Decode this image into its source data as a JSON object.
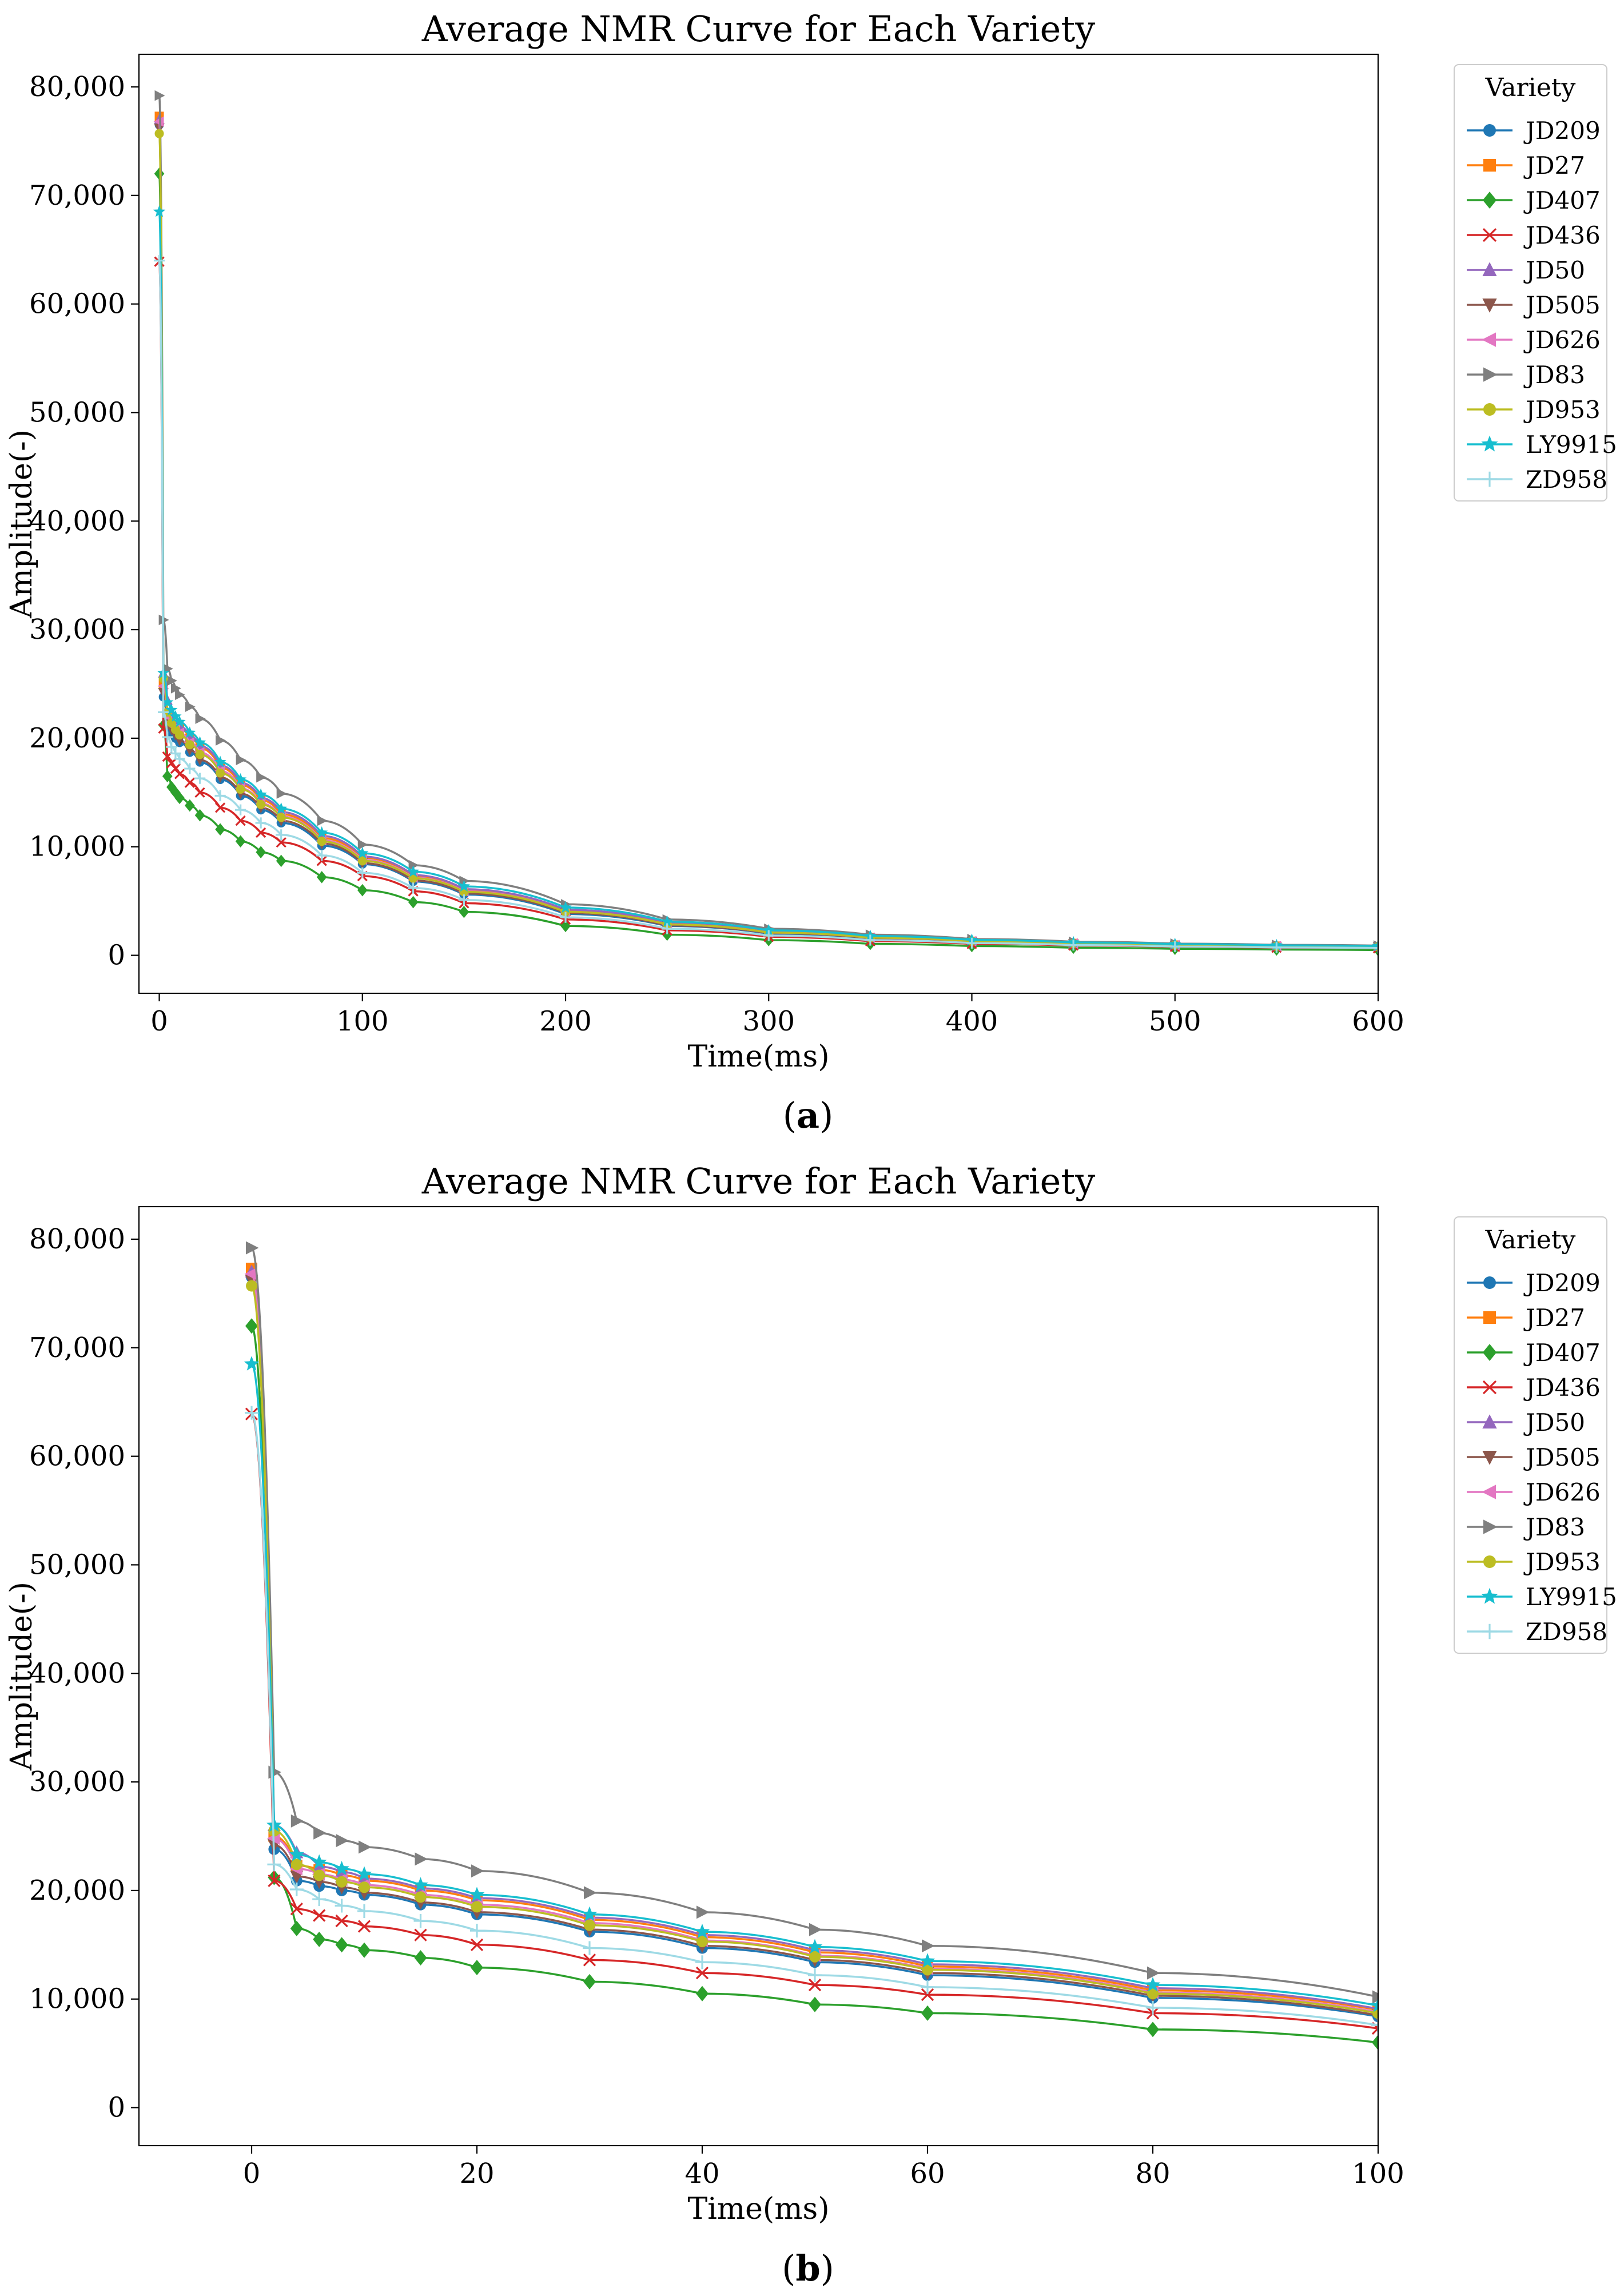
{
  "figure": {
    "panels": [
      {
        "caption_letter": "a"
      },
      {
        "caption_letter": "b"
      }
    ]
  },
  "chart_data": [
    {
      "type": "line",
      "title": "Average NMR Curve for Each Variety",
      "xlabel": "Time(ms)",
      "ylabel": "Amplitude(-)",
      "xlim": [
        -10,
        600
      ],
      "ylim": [
        -3500,
        83000
      ],
      "xticks": [
        0,
        100,
        200,
        300,
        400,
        500,
        600
      ],
      "xtick_labels": [
        "0",
        "100",
        "200",
        "300",
        "400",
        "500",
        "600"
      ],
      "yticks": [
        0,
        10000,
        20000,
        30000,
        40000,
        50000,
        60000,
        70000,
        80000
      ],
      "ytick_labels": [
        "0",
        "10,000",
        "20,000",
        "30,000",
        "40,000",
        "50,000",
        "60,000",
        "70,000",
        "80,000"
      ],
      "grid": false,
      "legend": {
        "title": "Variety",
        "placement": "outside-right-top"
      },
      "x_sample_times": [
        0,
        2,
        4,
        6,
        8,
        10,
        15,
        20,
        30,
        40,
        50,
        60,
        80,
        100,
        125,
        150,
        200,
        250,
        300,
        350,
        400,
        450,
        500,
        550,
        600
      ],
      "series": [
        {
          "name": "JD209",
          "color": "#1f77b4",
          "marker": "circle",
          "values": [
            76500,
            23800,
            20900,
            20400,
            20000,
            19600,
            18700,
            17800,
            16200,
            14700,
            13400,
            12200,
            10100,
            8400,
            6800,
            5600,
            3800,
            2700,
            2000,
            1550,
            1250,
            1050,
            900,
            800,
            750
          ]
        },
        {
          "name": "JD27",
          "color": "#ff7f0e",
          "marker": "square",
          "values": [
            77300,
            25000,
            22300,
            21900,
            21400,
            20900,
            20000,
            19100,
            17300,
            15700,
            14300,
            13000,
            10800,
            9000,
            7300,
            6000,
            4100,
            2900,
            2150,
            1650,
            1300,
            1100,
            950,
            850,
            800
          ]
        },
        {
          "name": "JD407",
          "color": "#2ca02c",
          "marker": "diamond",
          "values": [
            72000,
            21200,
            16500,
            15500,
            15000,
            14500,
            13800,
            12900,
            11600,
            10500,
            9500,
            8700,
            7200,
            6000,
            4900,
            4000,
            2700,
            1900,
            1400,
            1050,
            850,
            700,
            600,
            530,
            480
          ]
        },
        {
          "name": "JD436",
          "color": "#d62728",
          "marker": "x",
          "values": [
            63900,
            20900,
            18300,
            17700,
            17200,
            16700,
            15900,
            15000,
            13600,
            12400,
            11300,
            10400,
            8700,
            7300,
            5900,
            4800,
            3300,
            2300,
            1700,
            1300,
            1050,
            900,
            780,
            700,
            650
          ]
        },
        {
          "name": "JD50",
          "color": "#9467bd",
          "marker": "triangle-up",
          "values": [
            77000,
            26000,
            23500,
            22200,
            21700,
            21100,
            20200,
            19300,
            17500,
            15900,
            14500,
            13200,
            11000,
            9100,
            7400,
            6100,
            4200,
            3000,
            2200,
            1700,
            1350,
            1130,
            970,
            870,
            820
          ]
        },
        {
          "name": "JD505",
          "color": "#8c564b",
          "marker": "triangle-down",
          "values": [
            76200,
            24200,
            21300,
            20800,
            20300,
            19800,
            18900,
            18000,
            16400,
            14900,
            13600,
            12400,
            10300,
            8500,
            6900,
            5700,
            3900,
            2750,
            2050,
            1580,
            1270,
            1070,
            920,
            820,
            770
          ]
        },
        {
          "name": "JD626",
          "color": "#e377c2",
          "marker": "triangle-left",
          "values": [
            76800,
            24800,
            22000,
            21500,
            21000,
            20500,
            19600,
            18700,
            17000,
            15400,
            14000,
            12800,
            10600,
            8800,
            7150,
            5900,
            4000,
            2850,
            2100,
            1620,
            1300,
            1090,
            940,
            840,
            790
          ]
        },
        {
          "name": "JD83",
          "color": "#7f7f7f",
          "marker": "triangle-right",
          "values": [
            79200,
            30900,
            26400,
            25300,
            24600,
            24000,
            22900,
            21800,
            19800,
            18000,
            16400,
            14900,
            12400,
            10200,
            8300,
            6850,
            4700,
            3300,
            2450,
            1900,
            1500,
            1250,
            1080,
            960,
            900
          ]
        },
        {
          "name": "JD953",
          "color": "#bcbd22",
          "marker": "circle",
          "values": [
            75700,
            25500,
            22400,
            21400,
            20800,
            20300,
            19400,
            18500,
            16800,
            15300,
            13900,
            12700,
            10500,
            8700,
            7100,
            5850,
            4000,
            2850,
            2100,
            1620,
            1300,
            1090,
            940,
            840,
            790
          ]
        },
        {
          "name": "LY9915",
          "color": "#17becf",
          "marker": "star",
          "values": [
            68500,
            26000,
            23300,
            22600,
            22000,
            21500,
            20500,
            19600,
            17800,
            16200,
            14800,
            13500,
            11300,
            9400,
            7700,
            6350,
            4400,
            3100,
            2300,
            1780,
            1420,
            1190,
            1030,
            920,
            860
          ]
        },
        {
          "name": "ZD958",
          "color": "#9edae5",
          "marker": "plus",
          "values": [
            64000,
            22400,
            20100,
            19200,
            18600,
            18100,
            17200,
            16300,
            14700,
            13400,
            12200,
            11100,
            9200,
            7600,
            6200,
            5100,
            3500,
            2450,
            1820,
            1400,
            1120,
            940,
            810,
            720,
            680
          ]
        }
      ]
    },
    {
      "type": "line",
      "title": "Average NMR Curve for Each Variety",
      "xlabel": "Time(ms)",
      "ylabel": "Amplitude(-)",
      "xlim": [
        -10,
        100
      ],
      "ylim": [
        -3500,
        83000
      ],
      "xticks": [
        0,
        20,
        40,
        60,
        80,
        100
      ],
      "xtick_labels": [
        "0",
        "20",
        "40",
        "60",
        "80",
        "100"
      ],
      "yticks": [
        0,
        10000,
        20000,
        30000,
        40000,
        50000,
        60000,
        70000,
        80000
      ],
      "ytick_labels": [
        "0",
        "10,000",
        "20,000",
        "30,000",
        "40,000",
        "50,000",
        "60,000",
        "70,000",
        "80,000"
      ],
      "grid": false,
      "legend": {
        "title": "Variety",
        "placement": "outside-right-top"
      },
      "x_sample_times": [
        0,
        2,
        4,
        6,
        8,
        10,
        15,
        20,
        30,
        40,
        50,
        60,
        80,
        100
      ],
      "series": [
        {
          "name": "JD209",
          "color": "#1f77b4",
          "marker": "circle",
          "values": [
            76500,
            23800,
            20900,
            20400,
            20000,
            19600,
            18700,
            17800,
            16200,
            14700,
            13400,
            12200,
            10100,
            8400
          ]
        },
        {
          "name": "JD27",
          "color": "#ff7f0e",
          "marker": "square",
          "values": [
            77300,
            25000,
            22300,
            21900,
            21400,
            20900,
            20000,
            19100,
            17300,
            15700,
            14300,
            13000,
            10800,
            9000
          ]
        },
        {
          "name": "JD407",
          "color": "#2ca02c",
          "marker": "diamond",
          "values": [
            72000,
            21200,
            16500,
            15500,
            15000,
            14500,
            13800,
            12900,
            11600,
            10500,
            9500,
            8700,
            7200,
            6000
          ]
        },
        {
          "name": "JD436",
          "color": "#d62728",
          "marker": "x",
          "values": [
            63900,
            20900,
            18300,
            17700,
            17200,
            16700,
            15900,
            15000,
            13600,
            12400,
            11300,
            10400,
            8700,
            7300
          ]
        },
        {
          "name": "JD50",
          "color": "#9467bd",
          "marker": "triangle-up",
          "values": [
            77000,
            26000,
            23500,
            22200,
            21700,
            21100,
            20200,
            19300,
            17500,
            15900,
            14500,
            13200,
            11000,
            9100
          ]
        },
        {
          "name": "JD505",
          "color": "#8c564b",
          "marker": "triangle-down",
          "values": [
            76200,
            24200,
            21300,
            20800,
            20300,
            19800,
            18900,
            18000,
            16400,
            14900,
            13600,
            12400,
            10300,
            8500
          ]
        },
        {
          "name": "JD626",
          "color": "#e377c2",
          "marker": "triangle-left",
          "values": [
            76800,
            24800,
            22000,
            21500,
            21000,
            20500,
            19600,
            18700,
            17000,
            15400,
            14000,
            12800,
            10600,
            8800
          ]
        },
        {
          "name": "JD83",
          "color": "#7f7f7f",
          "marker": "triangle-right",
          "values": [
            79200,
            30900,
            26400,
            25300,
            24600,
            24000,
            22900,
            21800,
            19800,
            18000,
            16400,
            14900,
            12400,
            10200
          ]
        },
        {
          "name": "JD953",
          "color": "#bcbd22",
          "marker": "circle",
          "values": [
            75700,
            25500,
            22400,
            21400,
            20800,
            20300,
            19400,
            18500,
            16800,
            15300,
            13900,
            12700,
            10500,
            8700
          ]
        },
        {
          "name": "LY9915",
          "color": "#17becf",
          "marker": "star",
          "values": [
            68500,
            26000,
            23300,
            22600,
            22000,
            21500,
            20500,
            19600,
            17800,
            16200,
            14800,
            13500,
            11300,
            9400
          ]
        },
        {
          "name": "ZD958",
          "color": "#9edae5",
          "marker": "plus",
          "values": [
            64000,
            22400,
            20100,
            19200,
            18600,
            18100,
            17200,
            16300,
            14700,
            13400,
            12200,
            11100,
            9200,
            7600
          ]
        }
      ]
    }
  ]
}
